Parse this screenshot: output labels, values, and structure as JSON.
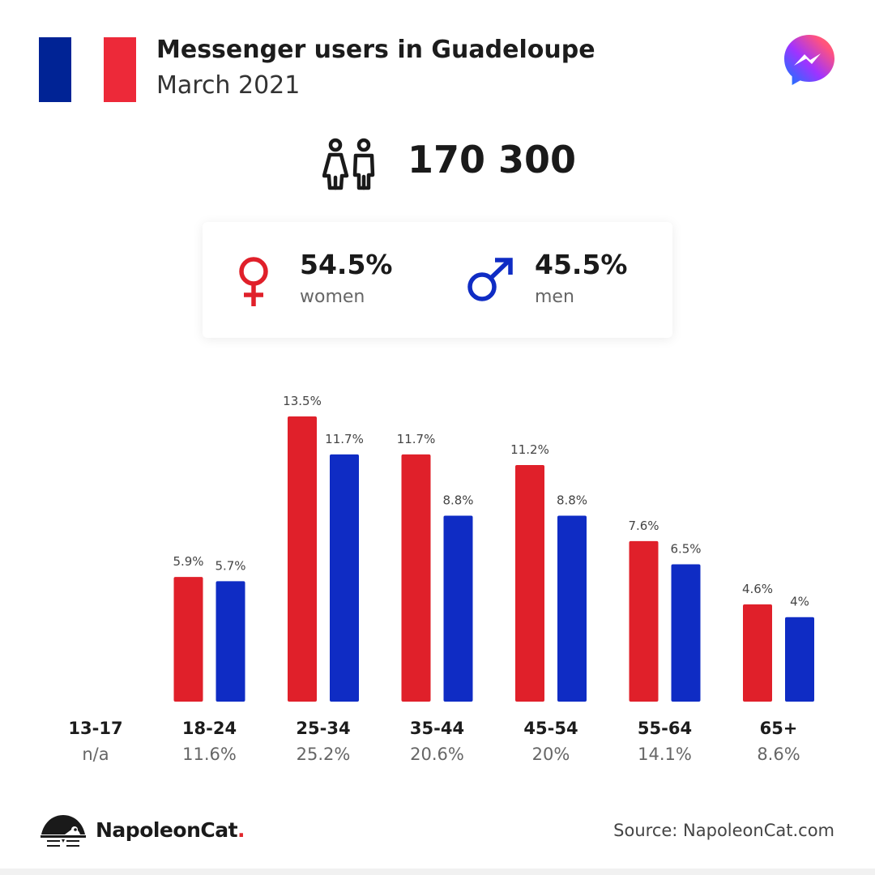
{
  "header": {
    "title": "Messenger users in Guadeloupe",
    "subtitle": "March 2021"
  },
  "flag": {
    "colors": [
      "#002395",
      "#ffffff",
      "#ed2939"
    ]
  },
  "icons": {
    "messenger": "messenger-logo-icon",
    "people": "people-icon",
    "female": "female-symbol-icon",
    "male": "male-symbol-icon",
    "brand": "napoleoncat-logo-icon"
  },
  "total": {
    "value": "170 300"
  },
  "gender": {
    "women": {
      "pct": "54.5%",
      "label": "women",
      "color": "#e0202a"
    },
    "men": {
      "pct": "45.5%",
      "label": "men",
      "color": "#0f2cc4"
    }
  },
  "chart_data": {
    "type": "bar",
    "categories": [
      "13-17",
      "18-24",
      "25-34",
      "35-44",
      "45-54",
      "55-64",
      "65+"
    ],
    "category_totals": [
      "n/a",
      "11.6%",
      "25.2%",
      "20.6%",
      "20%",
      "14.1%",
      "8.6%"
    ],
    "series": [
      {
        "name": "women",
        "color": "#e0202a",
        "values": [
          null,
          5.9,
          13.5,
          11.7,
          11.2,
          7.6,
          4.6
        ],
        "labels": [
          "",
          "5.9%",
          "13.5%",
          "11.7%",
          "11.2%",
          "7.6%",
          "4.6%"
        ]
      },
      {
        "name": "men",
        "color": "#0f2cc4",
        "values": [
          null,
          5.7,
          11.7,
          8.8,
          8.8,
          6.5,
          4.0
        ],
        "labels": [
          "",
          "5.7%",
          "11.7%",
          "8.8%",
          "8.8%",
          "6.5%",
          "4%"
        ]
      }
    ],
    "ylim": [
      0,
      13.5
    ],
    "grid": false
  },
  "footer": {
    "brand_name": "NapoleonCat",
    "brand_dot": ".",
    "source": "Source: NapoleonCat.com"
  }
}
